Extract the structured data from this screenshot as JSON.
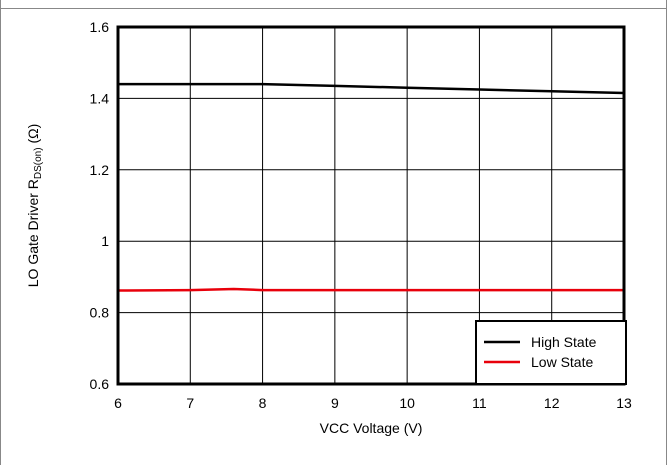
{
  "chart_data": {
    "type": "line",
    "xlabel": "VCC Voltage (V)",
    "ylabel": {
      "prefix": "LO Gate Driver R",
      "subscript": "DS(on)",
      "suffix": " (Ω)"
    },
    "xlim": [
      6,
      13
    ],
    "ylim": [
      0.6,
      1.6
    ],
    "x_ticks": [
      6,
      7,
      8,
      9,
      10,
      11,
      12,
      13
    ],
    "y_ticks": [
      0.6,
      0.8,
      1,
      1.2,
      1.4,
      1.6
    ],
    "x_tick_labels": [
      "6",
      "7",
      "8",
      "9",
      "10",
      "11",
      "12",
      "13"
    ],
    "y_tick_labels": [
      "0.6",
      "0.8",
      "1",
      "1.2",
      "1.4",
      "1.6"
    ],
    "grid": true,
    "legend_position": "bottom-right",
    "series": [
      {
        "name": "High State",
        "color": "#000000",
        "x": [
          6,
          7,
          7.6,
          8,
          9,
          10,
          11,
          12,
          13
        ],
        "y": [
          1.44,
          1.44,
          1.44,
          1.44,
          1.435,
          1.43,
          1.425,
          1.42,
          1.415
        ]
      },
      {
        "name": "Low State",
        "color": "#e8000b",
        "x": [
          6,
          7,
          7.6,
          8,
          9,
          10,
          11,
          12,
          13
        ],
        "y": [
          0.862,
          0.863,
          0.866,
          0.863,
          0.863,
          0.863,
          0.863,
          0.863,
          0.863
        ]
      }
    ]
  }
}
